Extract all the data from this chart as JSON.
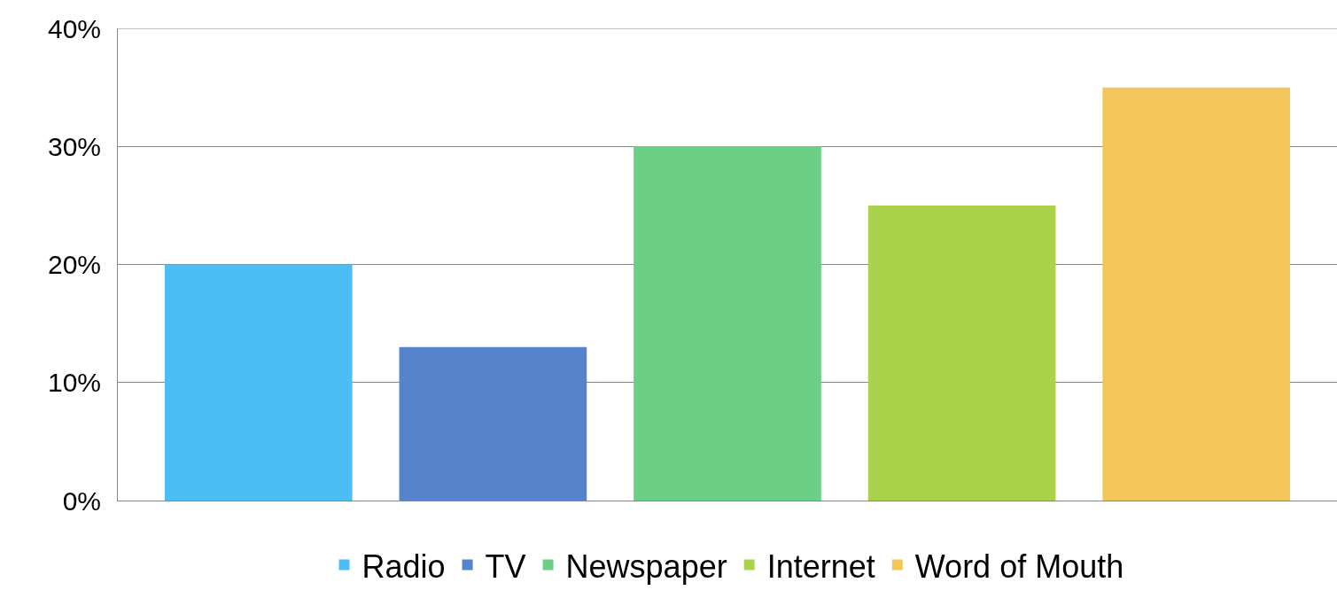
{
  "chart_data": {
    "type": "bar",
    "categories": [
      null,
      null,
      null,
      null,
      null
    ],
    "series": [
      {
        "name": "Radio",
        "color": "#4cbdf5",
        "values": [
          20,
          null,
          null,
          null,
          null
        ]
      },
      {
        "name": "TV",
        "color": "#5584cc",
        "values": [
          null,
          13,
          null,
          null,
          null
        ]
      },
      {
        "name": "Newspaper",
        "color": "#6bd085",
        "values": [
          null,
          null,
          30,
          null,
          null
        ]
      },
      {
        "name": "Internet",
        "color": "#aad24a",
        "values": [
          null,
          null,
          null,
          25,
          null
        ]
      },
      {
        "name": "Word of Mouth",
        "color": "#f2c65a",
        "values": [
          null,
          null,
          null,
          null,
          35
        ]
      }
    ],
    "ylim": [
      0,
      40
    ],
    "yticks": [
      {
        "value": 0,
        "label": "0%"
      },
      {
        "value": 10,
        "label": "10%"
      },
      {
        "value": 20,
        "label": "20%"
      },
      {
        "value": 30,
        "label": "30%"
      },
      {
        "value": 40,
        "label": "40%"
      }
    ],
    "grid": "y",
    "legend": "bottom",
    "tick_labels": "y"
  }
}
